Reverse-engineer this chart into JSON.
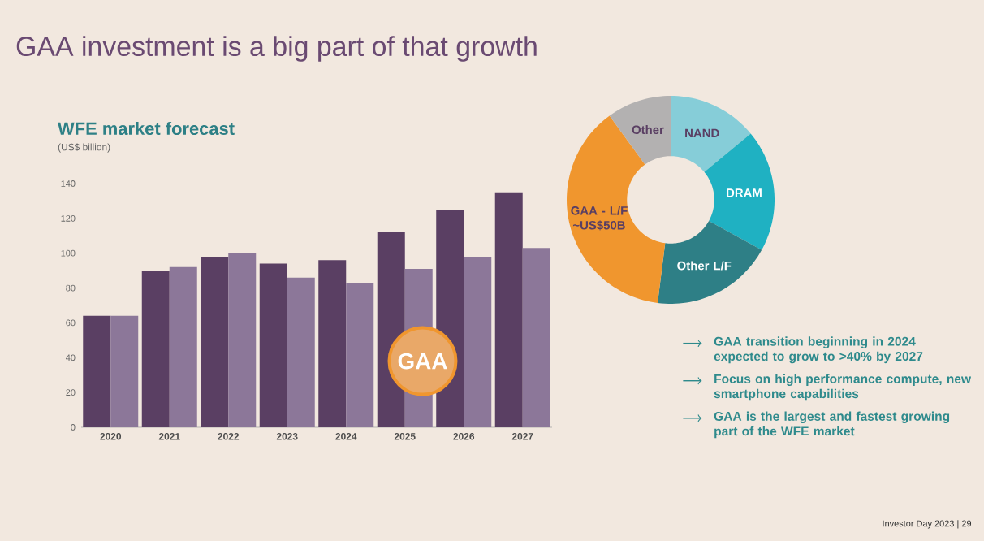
{
  "chart_data": [
    {
      "type": "bar",
      "title": "GAA investment is a big part of that growth",
      "subtitle": "WFE market forecast",
      "ylabel": "(US$ billion)",
      "categories": [
        "2020",
        "2021",
        "2022",
        "2023",
        "2024",
        "2025",
        "2026",
        "2027"
      ],
      "series": [
        {
          "color": "#5a3f63",
          "values": [
            64,
            90,
            98,
            94,
            96,
            112,
            125,
            135
          ]
        },
        {
          "color": "#8c7799",
          "values": [
            64,
            92,
            100,
            86,
            83,
            91,
            98,
            103
          ]
        }
      ],
      "ylim": [
        0,
        140
      ],
      "yticks": [
        0,
        20,
        40,
        60,
        80,
        100,
        120,
        140
      ],
      "annotations": [
        "GAA"
      ]
    },
    {
      "type": "donut",
      "categories": [
        "NAND",
        "DRAM",
        "Other L/F",
        "GAA - L/F ~US$50B",
        "Other"
      ],
      "values": [
        14,
        19,
        19,
        38,
        10
      ],
      "colors": [
        "#86cdd8",
        "#1fb1c2",
        "#2e7f86",
        "#f0962e",
        "#b3b1b1"
      ],
      "annotations": [
        "GAA transition beginning in 2024 expected to grow to >40% by 2027",
        "Focus on high performance compute, new smartphone capabilities",
        "GAA is the largest and fastest growing part of the WFE market",
        "Investor Day 2023 | 29"
      ]
    }
  ]
}
